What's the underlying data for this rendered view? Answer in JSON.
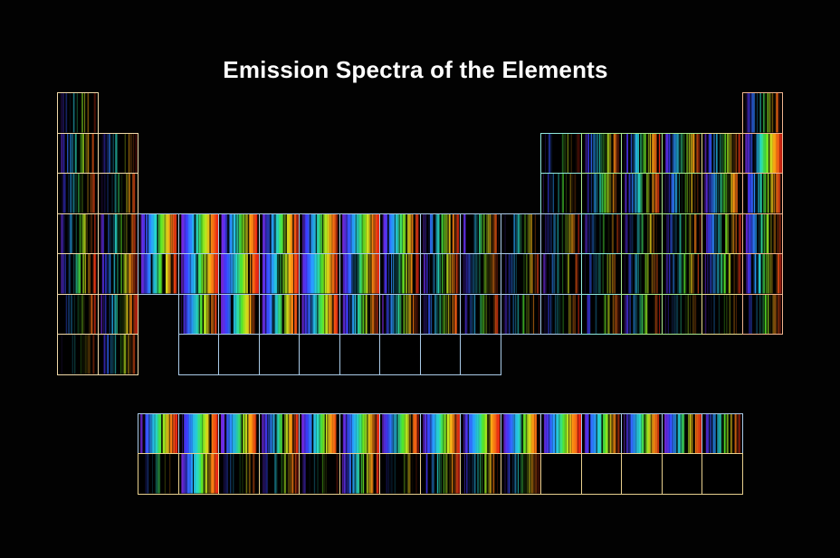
{
  "title": "Emission Spectra of the Elements",
  "colors": {
    "background": "#020202",
    "borders": {
      "s-block": "#f0d9a8",
      "d-block": "#aacbe8",
      "p-block-left": "#8fe8dc",
      "p-block-mid": "#a8e88f",
      "p-block-right": "#e8dc8f",
      "noble-gas": "#f0b48f",
      "lanthanide": "#aacbe8",
      "actinide": "#e8d08f"
    }
  },
  "chart_data": {
    "type": "heatmap",
    "title": "Emission Spectra of the Elements",
    "description_of_layout": "periodic table; each cell shows the element's emission line spectrum",
    "periods": 7,
    "groups": 18,
    "cells": [
      {
        "period": 1,
        "group": 1,
        "block": "s-block",
        "intensity": 0.15
      },
      {
        "period": 1,
        "group": 18,
        "block": "noble-gas",
        "intensity": 0.35
      },
      {
        "period": 2,
        "group": 1,
        "block": "s-block",
        "intensity": 0.35
      },
      {
        "period": 2,
        "group": 2,
        "block": "s-block",
        "intensity": 0.2
      },
      {
        "period": 2,
        "group": 13,
        "block": "p-block-left",
        "intensity": 0.1
      },
      {
        "period": 2,
        "group": 14,
        "block": "p-block-mid",
        "intensity": 0.45
      },
      {
        "period": 2,
        "group": 15,
        "block": "p-block-mid",
        "intensity": 0.6
      },
      {
        "period": 2,
        "group": 16,
        "block": "p-block-mid",
        "intensity": 0.55
      },
      {
        "period": 2,
        "group": 17,
        "block": "p-block-right",
        "intensity": 0.45
      },
      {
        "period": 2,
        "group": 18,
        "block": "noble-gas",
        "intensity": 0.7
      },
      {
        "period": 3,
        "group": 1,
        "block": "s-block",
        "intensity": 0.2
      },
      {
        "period": 3,
        "group": 2,
        "block": "s-block",
        "intensity": 0.2
      },
      {
        "period": 3,
        "group": 13,
        "block": "p-block-left",
        "intensity": 0.15
      },
      {
        "period": 3,
        "group": 14,
        "block": "p-block-mid",
        "intensity": 0.35
      },
      {
        "period": 3,
        "group": 15,
        "block": "p-block-mid",
        "intensity": 0.45
      },
      {
        "period": 3,
        "group": 16,
        "block": "p-block-mid",
        "intensity": 0.35
      },
      {
        "period": 3,
        "group": 17,
        "block": "p-block-right",
        "intensity": 0.55
      },
      {
        "period": 3,
        "group": 18,
        "block": "noble-gas",
        "intensity": 0.6
      },
      {
        "period": 4,
        "group": 1,
        "block": "s-block",
        "intensity": 0.3
      },
      {
        "period": 4,
        "group": 2,
        "block": "s-block",
        "intensity": 0.3
      },
      {
        "period": 4,
        "group": 3,
        "block": "d-block",
        "intensity": 0.85
      },
      {
        "period": 4,
        "group": 4,
        "block": "d-block",
        "intensity": 0.95
      },
      {
        "period": 4,
        "group": 5,
        "block": "d-block",
        "intensity": 0.85
      },
      {
        "period": 4,
        "group": 6,
        "block": "d-block",
        "intensity": 0.75
      },
      {
        "period": 4,
        "group": 7,
        "block": "d-block",
        "intensity": 0.7
      },
      {
        "period": 4,
        "group": 8,
        "block": "d-block",
        "intensity": 0.85
      },
      {
        "period": 4,
        "group": 9,
        "block": "d-block",
        "intensity": 0.75
      },
      {
        "period": 4,
        "group": 10,
        "block": "d-block",
        "intensity": 0.5
      },
      {
        "period": 4,
        "group": 11,
        "block": "d-block",
        "intensity": 0.35
      },
      {
        "period": 4,
        "group": 12,
        "block": "d-block",
        "intensity": 0.25
      },
      {
        "period": 4,
        "group": 13,
        "block": "d-block",
        "intensity": 0.25
      },
      {
        "period": 4,
        "group": 14,
        "block": "p-block-left",
        "intensity": 0.2
      },
      {
        "period": 4,
        "group": 15,
        "block": "p-block-mid",
        "intensity": 0.3
      },
      {
        "period": 4,
        "group": 16,
        "block": "p-block-mid",
        "intensity": 0.25
      },
      {
        "period": 4,
        "group": 17,
        "block": "p-block-right",
        "intensity": 0.45
      },
      {
        "period": 4,
        "group": 18,
        "block": "noble-gas",
        "intensity": 0.55
      },
      {
        "period": 5,
        "group": 1,
        "block": "s-block",
        "intensity": 0.35
      },
      {
        "period": 5,
        "group": 2,
        "block": "s-block",
        "intensity": 0.45
      },
      {
        "period": 5,
        "group": 3,
        "block": "d-block",
        "intensity": 0.65
      },
      {
        "period": 5,
        "group": 4,
        "block": "d-block",
        "intensity": 0.8
      },
      {
        "period": 5,
        "group": 5,
        "block": "d-block",
        "intensity": 0.9
      },
      {
        "period": 5,
        "group": 6,
        "block": "d-block",
        "intensity": 0.85
      },
      {
        "period": 5,
        "group": 7,
        "block": "d-block",
        "intensity": 0.9
      },
      {
        "period": 5,
        "group": 8,
        "block": "d-block",
        "intensity": 0.65
      },
      {
        "period": 5,
        "group": 9,
        "block": "d-block",
        "intensity": 0.5
      },
      {
        "period": 5,
        "group": 10,
        "block": "d-block",
        "intensity": 0.4
      },
      {
        "period": 5,
        "group": 11,
        "block": "d-block",
        "intensity": 0.3
      },
      {
        "period": 5,
        "group": 12,
        "block": "d-block",
        "intensity": 0.2
      },
      {
        "period": 5,
        "group": 13,
        "block": "d-block",
        "intensity": 0.2
      },
      {
        "period": 5,
        "group": 14,
        "block": "p-block-left",
        "intensity": 0.2
      },
      {
        "period": 5,
        "group": 15,
        "block": "p-block-mid",
        "intensity": 0.25
      },
      {
        "period": 5,
        "group": 16,
        "block": "p-block-mid",
        "intensity": 0.3
      },
      {
        "period": 5,
        "group": 17,
        "block": "p-block-right",
        "intensity": 0.35
      },
      {
        "period": 5,
        "group": 18,
        "block": "noble-gas",
        "intensity": 0.5
      },
      {
        "period": 6,
        "group": 1,
        "block": "s-block",
        "intensity": 0.2
      },
      {
        "period": 6,
        "group": 2,
        "block": "s-block",
        "intensity": 0.4
      },
      {
        "period": 6,
        "group": 4,
        "block": "d-block",
        "intensity": 0.65
      },
      {
        "period": 6,
        "group": 5,
        "block": "d-block",
        "intensity": 0.8
      },
      {
        "period": 6,
        "group": 6,
        "block": "d-block",
        "intensity": 0.7
      },
      {
        "period": 6,
        "group": 7,
        "block": "d-block",
        "intensity": 0.7
      },
      {
        "period": 6,
        "group": 8,
        "block": "d-block",
        "intensity": 0.6
      },
      {
        "period": 6,
        "group": 9,
        "block": "d-block",
        "intensity": 0.45
      },
      {
        "period": 6,
        "group": 10,
        "block": "d-block",
        "intensity": 0.4
      },
      {
        "period": 6,
        "group": 11,
        "block": "d-block",
        "intensity": 0.25
      },
      {
        "period": 6,
        "group": 12,
        "block": "d-block",
        "intensity": 0.25
      },
      {
        "period": 6,
        "group": 13,
        "block": "d-block",
        "intensity": 0.2
      },
      {
        "period": 6,
        "group": 14,
        "block": "p-block-left",
        "intensity": 0.2
      },
      {
        "period": 6,
        "group": 15,
        "block": "p-block-mid",
        "intensity": 0.3
      },
      {
        "period": 6,
        "group": 16,
        "block": "p-block-mid",
        "intensity": 0.1
      },
      {
        "period": 6,
        "group": 17,
        "block": "p-block-right",
        "intensity": 0.05
      },
      {
        "period": 6,
        "group": 18,
        "block": "noble-gas",
        "intensity": 0.2
      },
      {
        "period": 7,
        "group": 1,
        "block": "s-block",
        "intensity": 0.05
      },
      {
        "period": 7,
        "group": 2,
        "block": "s-block",
        "intensity": 0.25
      },
      {
        "period": 7,
        "group": 4,
        "block": "d-block",
        "intensity": 0
      },
      {
        "period": 7,
        "group": 5,
        "block": "d-block",
        "intensity": 0
      },
      {
        "period": 7,
        "group": 6,
        "block": "d-block",
        "intensity": 0
      },
      {
        "period": 7,
        "group": 7,
        "block": "d-block",
        "intensity": 0
      },
      {
        "period": 7,
        "group": 8,
        "block": "d-block",
        "intensity": 0
      },
      {
        "period": 7,
        "group": 9,
        "block": "d-block",
        "intensity": 0
      },
      {
        "period": 7,
        "group": 10,
        "block": "d-block",
        "intensity": 0
      },
      {
        "period": 7,
        "group": 11,
        "block": "d-block",
        "intensity": 0
      }
    ],
    "f_block": [
      {
        "row": "lanthanide",
        "index": 1,
        "intensity": 0.75
      },
      {
        "row": "lanthanide",
        "index": 2,
        "intensity": 0.85
      },
      {
        "row": "lanthanide",
        "index": 3,
        "intensity": 0.7
      },
      {
        "row": "lanthanide",
        "index": 4,
        "intensity": 0.65
      },
      {
        "row": "lanthanide",
        "index": 5,
        "intensity": 0.7
      },
      {
        "row": "lanthanide",
        "index": 6,
        "intensity": 0.8
      },
      {
        "row": "lanthanide",
        "index": 7,
        "intensity": 0.7
      },
      {
        "row": "lanthanide",
        "index": 8,
        "intensity": 0.8
      },
      {
        "row": "lanthanide",
        "index": 9,
        "intensity": 0.9
      },
      {
        "row": "lanthanide",
        "index": 10,
        "intensity": 0.8
      },
      {
        "row": "lanthanide",
        "index": 11,
        "intensity": 0.85
      },
      {
        "row": "lanthanide",
        "index": 12,
        "intensity": 0.7
      },
      {
        "row": "lanthanide",
        "index": 13,
        "intensity": 0.65
      },
      {
        "row": "lanthanide",
        "index": 14,
        "intensity": 0.65
      },
      {
        "row": "lanthanide",
        "index": 15,
        "intensity": 0.5
      },
      {
        "row": "actinide",
        "index": 1,
        "intensity": 0.05
      },
      {
        "row": "actinide",
        "index": 2,
        "intensity": 0.7
      },
      {
        "row": "actinide",
        "index": 3,
        "intensity": 0.1
      },
      {
        "row": "actinide",
        "index": 4,
        "intensity": 0.3
      },
      {
        "row": "actinide",
        "index": 5,
        "intensity": 0.05
      },
      {
        "row": "actinide",
        "index": 6,
        "intensity": 0.6
      },
      {
        "row": "actinide",
        "index": 7,
        "intensity": 0.1
      },
      {
        "row": "actinide",
        "index": 8,
        "intensity": 0.35
      },
      {
        "row": "actinide",
        "index": 9,
        "intensity": 0.3
      },
      {
        "row": "actinide",
        "index": 10,
        "intensity": 0.3
      },
      {
        "row": "actinide",
        "index": 11,
        "intensity": 0
      },
      {
        "row": "actinide",
        "index": 12,
        "intensity": 0
      },
      {
        "row": "actinide",
        "index": 13,
        "intensity": 0
      },
      {
        "row": "actinide",
        "index": 14,
        "intensity": 0
      },
      {
        "row": "actinide",
        "index": 15,
        "intensity": 0
      }
    ]
  }
}
